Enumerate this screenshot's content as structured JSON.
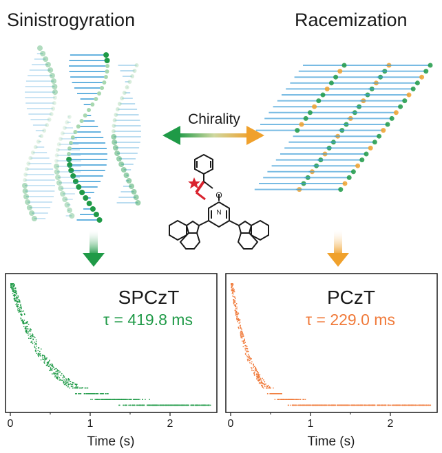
{
  "titles": {
    "left": "Sinistrogyration",
    "right": "Racemization"
  },
  "center_label": "Chirality",
  "molecule_atoms": {
    "oxygen": "O",
    "nitrogen": "N"
  },
  "colors": {
    "green": "#1f9a47",
    "green_light": "#a8d8b0",
    "orange": "#f0a12c",
    "orange_points": "#f07a3a",
    "blue_rung": "#3f9fd8",
    "star_red": "#d9232e",
    "ink": "#1a1a1a"
  },
  "chart_data": [
    {
      "type": "scatter",
      "series": [
        {
          "name": "SPCzT"
        }
      ],
      "annotation": "τ = 419.8 ms",
      "xlabel": "Time (s)",
      "xticks": [
        "0",
        "1",
        "2"
      ],
      "xlim": [
        0,
        2.5
      ],
      "decay": {
        "lifetime_s": 0.4198
      },
      "x_max_data": 2.5,
      "grid": false
    },
    {
      "type": "scatter",
      "series": [
        {
          "name": "PCzT"
        }
      ],
      "annotation": "τ = 229.0 ms",
      "xlabel": "Time (s)",
      "xticks": [
        "0",
        "1",
        "2"
      ],
      "xlim": [
        0,
        2.5
      ],
      "decay": {
        "lifetime_s": 0.229
      },
      "x_max_data": 2.5,
      "grid": false
    }
  ]
}
